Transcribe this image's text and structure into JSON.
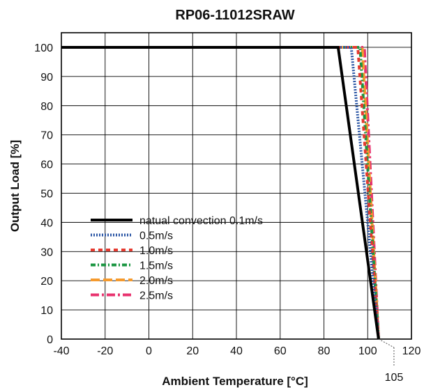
{
  "chart_data": {
    "type": "line",
    "title": "RP06-11012SRAW",
    "xlabel": "Ambient Temperature [°C]",
    "ylabel": "Output Load [%]",
    "xlim": [
      -40,
      120
    ],
    "ylim": [
      0,
      105
    ],
    "xticks": [
      -40,
      -20,
      0,
      20,
      40,
      60,
      80,
      100,
      120
    ],
    "yticks": [
      0,
      10,
      20,
      30,
      40,
      50,
      60,
      70,
      80,
      90,
      100
    ],
    "grid": true,
    "legend_position": "center-left",
    "annotation": {
      "text": "105",
      "x": 105
    },
    "series": [
      {
        "name": "natual convection 0.1m/s",
        "color": "#000000",
        "dash": "solid",
        "x": [
          -40,
          86.5,
          105
        ],
        "y": [
          100,
          100,
          0
        ]
      },
      {
        "name": "0.5m/s",
        "color": "#2a55a4",
        "dash": "dotted",
        "x": [
          -40,
          92.5,
          105
        ],
        "y": [
          100,
          100,
          0
        ]
      },
      {
        "name": "1.0m/s",
        "color": "#e53a2f",
        "dash": "dashed",
        "x": [
          -40,
          95.5,
          105
        ],
        "y": [
          100,
          100,
          0
        ]
      },
      {
        "name": "1.5m/s",
        "color": "#1a9641",
        "dash": "dashdot",
        "x": [
          -40,
          96.5,
          105
        ],
        "y": [
          100,
          100,
          0
        ]
      },
      {
        "name": "2.0m/s",
        "color": "#f59a2d",
        "dash": "longdash",
        "x": [
          -40,
          97.5,
          105
        ],
        "y": [
          100,
          100,
          0
        ]
      },
      {
        "name": "2.5m/s",
        "color": "#e8336f",
        "dash": "dashdotlong",
        "x": [
          -40,
          98.5,
          105
        ],
        "y": [
          100,
          100,
          0
        ]
      }
    ]
  }
}
